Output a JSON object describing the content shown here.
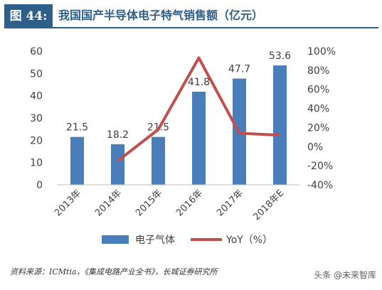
{
  "header": {
    "figure_label": "图 44:",
    "title": "我国国产半导体电子特气销售额（亿元）"
  },
  "chart_data": {
    "type": "bar",
    "categories": [
      "2013年",
      "2014年",
      "2015年",
      "2016年",
      "2017年",
      "2018年E"
    ],
    "series": [
      {
        "name": "电子气体",
        "kind": "bar",
        "axis": "left",
        "values": [
          21.5,
          18.2,
          21.5,
          41.8,
          47.7,
          53.6
        ],
        "labels": [
          "21.5",
          "18.2",
          "21.5",
          "41.8",
          "47.7",
          "53.6"
        ],
        "color": "#4a7ebb"
      },
      {
        "name": "YoY（%）",
        "kind": "line",
        "axis": "right",
        "values": [
          null,
          -15,
          18,
          93,
          14,
          12
        ],
        "color": "#c0504d"
      }
    ],
    "y_left": {
      "min": 0,
      "max": 60,
      "ticks": [
        "0",
        "10",
        "20",
        "30",
        "40",
        "50",
        "60"
      ]
    },
    "y_right": {
      "min": -40,
      "max": 100,
      "ticks": [
        "-40%",
        "-20%",
        "0%",
        "20%",
        "40%",
        "60%",
        "80%",
        "100%"
      ]
    },
    "grid": false,
    "legend_position": "bottom"
  },
  "footer": {
    "source": "资料来源：ICMtia，《集成电路产业全书》，长城证券研究所",
    "watermark": "头条 @未来智库"
  }
}
